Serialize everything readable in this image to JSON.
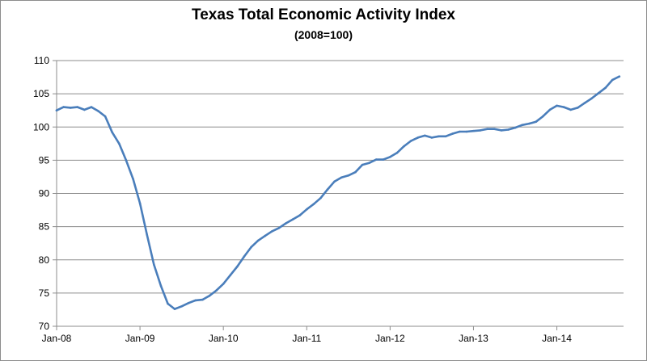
{
  "chart_data": {
    "type": "line",
    "title": "Texas Total Economic Activity Index",
    "subtitle": "(2008=100)",
    "xlabel": "",
    "ylabel": "",
    "ylim": [
      70,
      110
    ],
    "yticks": [
      70,
      75,
      80,
      85,
      90,
      95,
      100,
      105,
      110
    ],
    "xticks": [
      "Jan-08",
      "Jan-09",
      "Jan-10",
      "Jan-11",
      "Jan-12",
      "Jan-13",
      "Jan-14"
    ],
    "grid": "horizontal",
    "legend": "none",
    "line_color": "#4a7ebb",
    "series": [
      {
        "x": [
          "2008-01",
          "2008-02",
          "2008-03",
          "2008-04",
          "2008-05",
          "2008-06",
          "2008-07",
          "2008-08",
          "2008-09",
          "2008-10",
          "2008-11",
          "2008-12",
          "2009-01",
          "2009-02",
          "2009-03",
          "2009-04",
          "2009-05",
          "2009-06",
          "2009-07",
          "2009-08",
          "2009-09",
          "2009-10",
          "2009-11",
          "2009-12",
          "2010-01",
          "2010-02",
          "2010-03",
          "2010-04",
          "2010-05",
          "2010-06",
          "2010-07",
          "2010-08",
          "2010-09",
          "2010-10",
          "2010-11",
          "2010-12",
          "2011-01",
          "2011-02",
          "2011-03",
          "2011-04",
          "2011-05",
          "2011-06",
          "2011-07",
          "2011-08",
          "2011-09",
          "2011-10",
          "2011-11",
          "2011-12",
          "2012-01",
          "2012-02",
          "2012-03",
          "2012-04",
          "2012-05",
          "2012-06",
          "2012-07",
          "2012-08",
          "2012-09",
          "2012-10",
          "2012-11",
          "2012-12",
          "2013-01",
          "2013-02",
          "2013-03",
          "2013-04",
          "2013-05",
          "2013-06",
          "2013-07",
          "2013-08",
          "2013-09",
          "2013-10",
          "2013-11",
          "2013-12",
          "2014-01",
          "2014-02",
          "2014-03",
          "2014-04",
          "2014-05",
          "2014-06",
          "2014-07",
          "2014-08",
          "2014-09",
          "2014-10"
        ],
        "values": [
          102.5,
          103.0,
          102.9,
          103.0,
          102.6,
          103.0,
          102.4,
          101.6,
          99.2,
          97.5,
          95.0,
          92.2,
          88.5,
          83.8,
          79.3,
          76.1,
          73.4,
          72.6,
          73.0,
          73.5,
          73.9,
          74.0,
          74.6,
          75.4,
          76.4,
          77.7,
          79.0,
          80.5,
          81.9,
          82.9,
          83.6,
          84.3,
          84.8,
          85.5,
          86.1,
          86.7,
          87.6,
          88.4,
          89.3,
          90.6,
          91.8,
          92.4,
          92.7,
          93.2,
          94.3,
          94.6,
          95.1,
          95.1,
          95.5,
          96.1,
          97.1,
          97.9,
          98.4,
          98.7,
          98.4,
          98.6,
          98.6,
          99.0,
          99.3,
          99.3,
          99.4,
          99.5,
          99.7,
          99.7,
          99.5,
          99.6,
          99.9,
          100.3,
          100.5,
          100.8,
          101.6,
          102.6,
          103.2,
          103.0,
          102.6,
          102.9,
          103.6,
          104.3,
          105.1,
          105.9,
          107.1,
          107.6
        ]
      }
    ]
  }
}
